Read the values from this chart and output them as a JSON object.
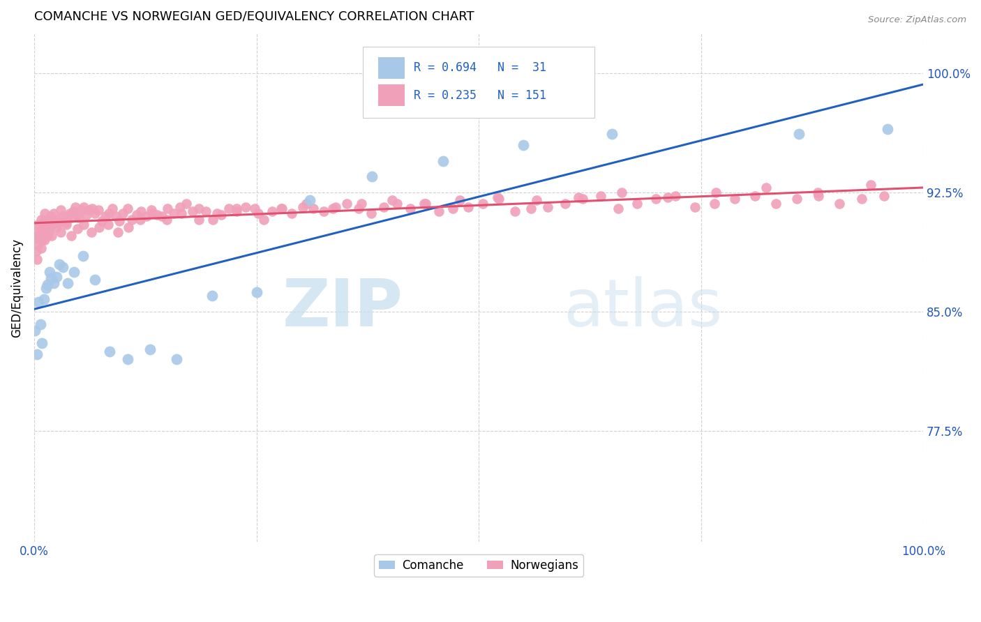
{
  "title": "COMANCHE VS NORWEGIAN GED/EQUIVALENCY CORRELATION CHART",
  "source": "Source: ZipAtlas.com",
  "ylabel": "GED/Equivalency",
  "legend_comanche": "Comanche",
  "legend_norwegian": "Norwegians",
  "r_comanche": 0.694,
  "n_comanche": 31,
  "r_norwegian": 0.235,
  "n_norwegian": 151,
  "color_comanche": "#a8c8e8",
  "color_norwegian": "#f0a0b8",
  "line_color_comanche": "#2060c0",
  "line_color_norwegian": "#e05070",
  "watermark_zip": "ZIP",
  "watermark_atlas": "atlas",
  "background_color": "#ffffff",
  "ytick_values": [
    0.775,
    0.85,
    0.925,
    1.0
  ],
  "ytick_labels": [
    "77.5%",
    "85.0%",
    "92.5%",
    "100.0%"
  ],
  "ymin": 0.705,
  "ymax": 1.025,
  "xmin": 0.0,
  "xmax": 1.0,
  "comanche_x": [
    0.001,
    0.003,
    0.005,
    0.007,
    0.009,
    0.011,
    0.013,
    0.015,
    0.017,
    0.019,
    0.022,
    0.025,
    0.028,
    0.032,
    0.038,
    0.045,
    0.055,
    0.068,
    0.085,
    0.105,
    0.13,
    0.16,
    0.2,
    0.25,
    0.31,
    0.38,
    0.46,
    0.55,
    0.65,
    0.86,
    0.96
  ],
  "comanche_y": [
    0.838,
    0.823,
    0.856,
    0.842,
    0.83,
    0.858,
    0.865,
    0.867,
    0.875,
    0.871,
    0.868,
    0.872,
    0.88,
    0.878,
    0.868,
    0.875,
    0.885,
    0.87,
    0.825,
    0.82,
    0.826,
    0.82,
    0.86,
    0.862,
    0.92,
    0.935,
    0.945,
    0.955,
    0.962,
    0.962,
    0.965
  ],
  "norwegian_x": [
    0.001,
    0.002,
    0.003,
    0.004,
    0.005,
    0.006,
    0.007,
    0.008,
    0.009,
    0.01,
    0.011,
    0.012,
    0.013,
    0.014,
    0.015,
    0.016,
    0.017,
    0.018,
    0.019,
    0.02,
    0.022,
    0.024,
    0.026,
    0.028,
    0.03,
    0.032,
    0.034,
    0.036,
    0.038,
    0.04,
    0.042,
    0.044,
    0.046,
    0.048,
    0.05,
    0.053,
    0.056,
    0.059,
    0.062,
    0.065,
    0.068,
    0.072,
    0.076,
    0.08,
    0.084,
    0.088,
    0.092,
    0.096,
    0.1,
    0.105,
    0.11,
    0.115,
    0.12,
    0.126,
    0.132,
    0.138,
    0.144,
    0.15,
    0.157,
    0.164,
    0.171,
    0.178,
    0.185,
    0.193,
    0.201,
    0.21,
    0.219,
    0.228,
    0.238,
    0.248,
    0.258,
    0.268,
    0.279,
    0.29,
    0.302,
    0.314,
    0.326,
    0.339,
    0.352,
    0.365,
    0.379,
    0.393,
    0.408,
    0.423,
    0.439,
    0.455,
    0.471,
    0.488,
    0.505,
    0.523,
    0.541,
    0.559,
    0.578,
    0.597,
    0.617,
    0.637,
    0.657,
    0.678,
    0.699,
    0.721,
    0.743,
    0.765,
    0.788,
    0.811,
    0.834,
    0.858,
    0.882,
    0.906,
    0.931,
    0.956,
    0.004,
    0.008,
    0.012,
    0.016,
    0.02,
    0.025,
    0.03,
    0.036,
    0.042,
    0.049,
    0.056,
    0.064,
    0.073,
    0.083,
    0.094,
    0.106,
    0.119,
    0.133,
    0.149,
    0.166,
    0.185,
    0.206,
    0.228,
    0.252,
    0.278,
    0.306,
    0.336,
    0.368,
    0.403,
    0.44,
    0.479,
    0.521,
    0.565,
    0.612,
    0.661,
    0.713,
    0.767,
    0.823,
    0.881,
    0.941,
    0.003
  ],
  "norwegian_y": [
    0.896,
    0.888,
    0.9,
    0.892,
    0.898,
    0.905,
    0.9,
    0.908,
    0.895,
    0.902,
    0.907,
    0.912,
    0.9,
    0.905,
    0.898,
    0.902,
    0.908,
    0.91,
    0.904,
    0.908,
    0.912,
    0.906,
    0.908,
    0.906,
    0.914,
    0.91,
    0.908,
    0.906,
    0.91,
    0.912,
    0.909,
    0.913,
    0.916,
    0.911,
    0.909,
    0.914,
    0.916,
    0.911,
    0.914,
    0.915,
    0.912,
    0.914,
    0.907,
    0.91,
    0.912,
    0.915,
    0.91,
    0.907,
    0.912,
    0.915,
    0.908,
    0.911,
    0.913,
    0.91,
    0.914,
    0.911,
    0.91,
    0.915,
    0.912,
    0.916,
    0.918,
    0.913,
    0.915,
    0.913,
    0.908,
    0.911,
    0.915,
    0.913,
    0.916,
    0.915,
    0.908,
    0.913,
    0.915,
    0.912,
    0.916,
    0.915,
    0.913,
    0.916,
    0.918,
    0.915,
    0.912,
    0.916,
    0.918,
    0.915,
    0.918,
    0.913,
    0.915,
    0.916,
    0.918,
    0.921,
    0.913,
    0.915,
    0.916,
    0.918,
    0.921,
    0.923,
    0.915,
    0.918,
    0.921,
    0.923,
    0.916,
    0.918,
    0.921,
    0.923,
    0.918,
    0.921,
    0.923,
    0.918,
    0.921,
    0.923,
    0.905,
    0.89,
    0.895,
    0.9,
    0.898,
    0.903,
    0.9,
    0.905,
    0.898,
    0.902,
    0.905,
    0.9,
    0.903,
    0.905,
    0.9,
    0.903,
    0.908,
    0.912,
    0.908,
    0.912,
    0.908,
    0.912,
    0.915,
    0.912,
    0.915,
    0.918,
    0.915,
    0.918,
    0.92,
    0.918,
    0.92,
    0.922,
    0.92,
    0.922,
    0.925,
    0.922,
    0.925,
    0.928,
    0.925,
    0.93,
    0.883
  ]
}
